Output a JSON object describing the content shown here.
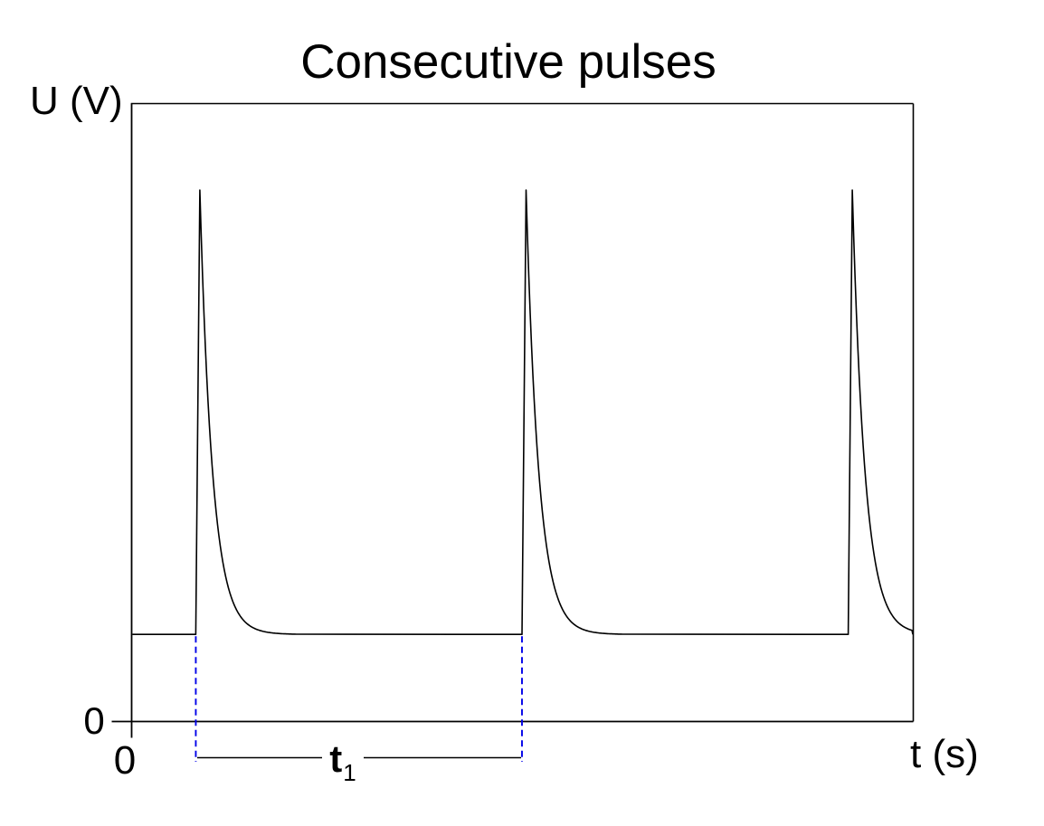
{
  "title": "Consecutive pulses",
  "axes": {
    "y_label": "U (V)",
    "x_label": "t (s)",
    "y_origin_tick": "0",
    "x_origin_tick": "0"
  },
  "annotation": {
    "label_main": "t",
    "label_sub": "1"
  },
  "colors": {
    "curve": "#000000",
    "axis": "#000000",
    "guide_dashed": "#0000e8",
    "background": "#ffffff",
    "text": "#000000"
  },
  "chart_data": {
    "type": "line",
    "title": "Consecutive pulses",
    "xlabel": "t (s)",
    "ylabel": "U (V)",
    "x_tick_labels": [
      "0"
    ],
    "y_tick_labels": [
      "0"
    ],
    "grid": false,
    "legend": false,
    "description": "Voltage vs time: three consecutive sharp spike pulses rising from a constant baseline with rapid exponential decay back to the baseline; the period between the first two pulse onsets is marked t1 with blue dashed guides.",
    "axis_range_frac": {
      "x": [
        0,
        1
      ],
      "y": [
        0,
        1
      ]
    },
    "baseline_level_frac": 0.141,
    "peak_level_frac": 0.86,
    "pulse_start_frac": [
      0.0821,
      0.4994,
      0.9168
    ],
    "pulse_rise_width_frac": 0.0052,
    "decay_tau_frac": 0.0162,
    "period_label": "t1",
    "period_span_frac": [
      0.0821,
      0.4994
    ]
  }
}
